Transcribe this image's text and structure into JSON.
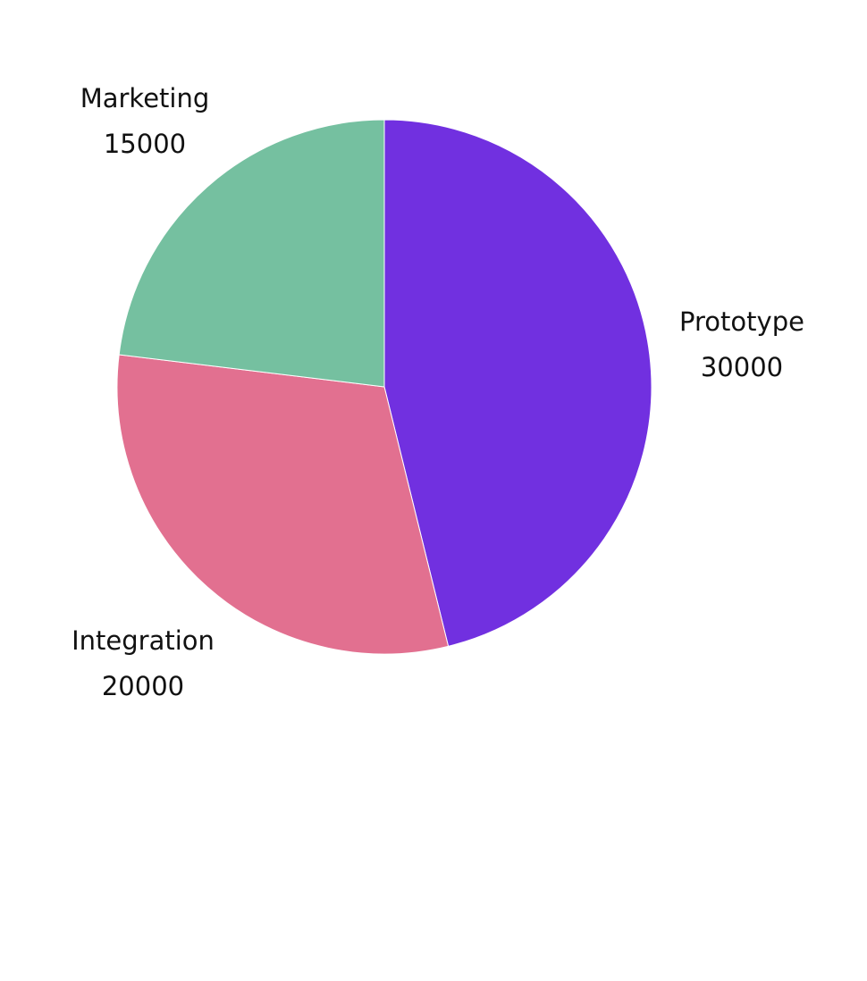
{
  "chart_data": {
    "type": "pie",
    "slices": [
      {
        "label": "Prototype",
        "value": 30000,
        "value_text": "30000",
        "color": "#7130E0"
      },
      {
        "label": "Integration",
        "value": 20000,
        "value_text": "20000",
        "color": "#E27090"
      },
      {
        "label": "Marketing",
        "value": 15000,
        "value_text": "15000",
        "color": "#75C0A0"
      }
    ],
    "start_angle": "12 o'clock",
    "direction": "clockwise",
    "legend": "none",
    "labels": "outside slices, name above value"
  }
}
